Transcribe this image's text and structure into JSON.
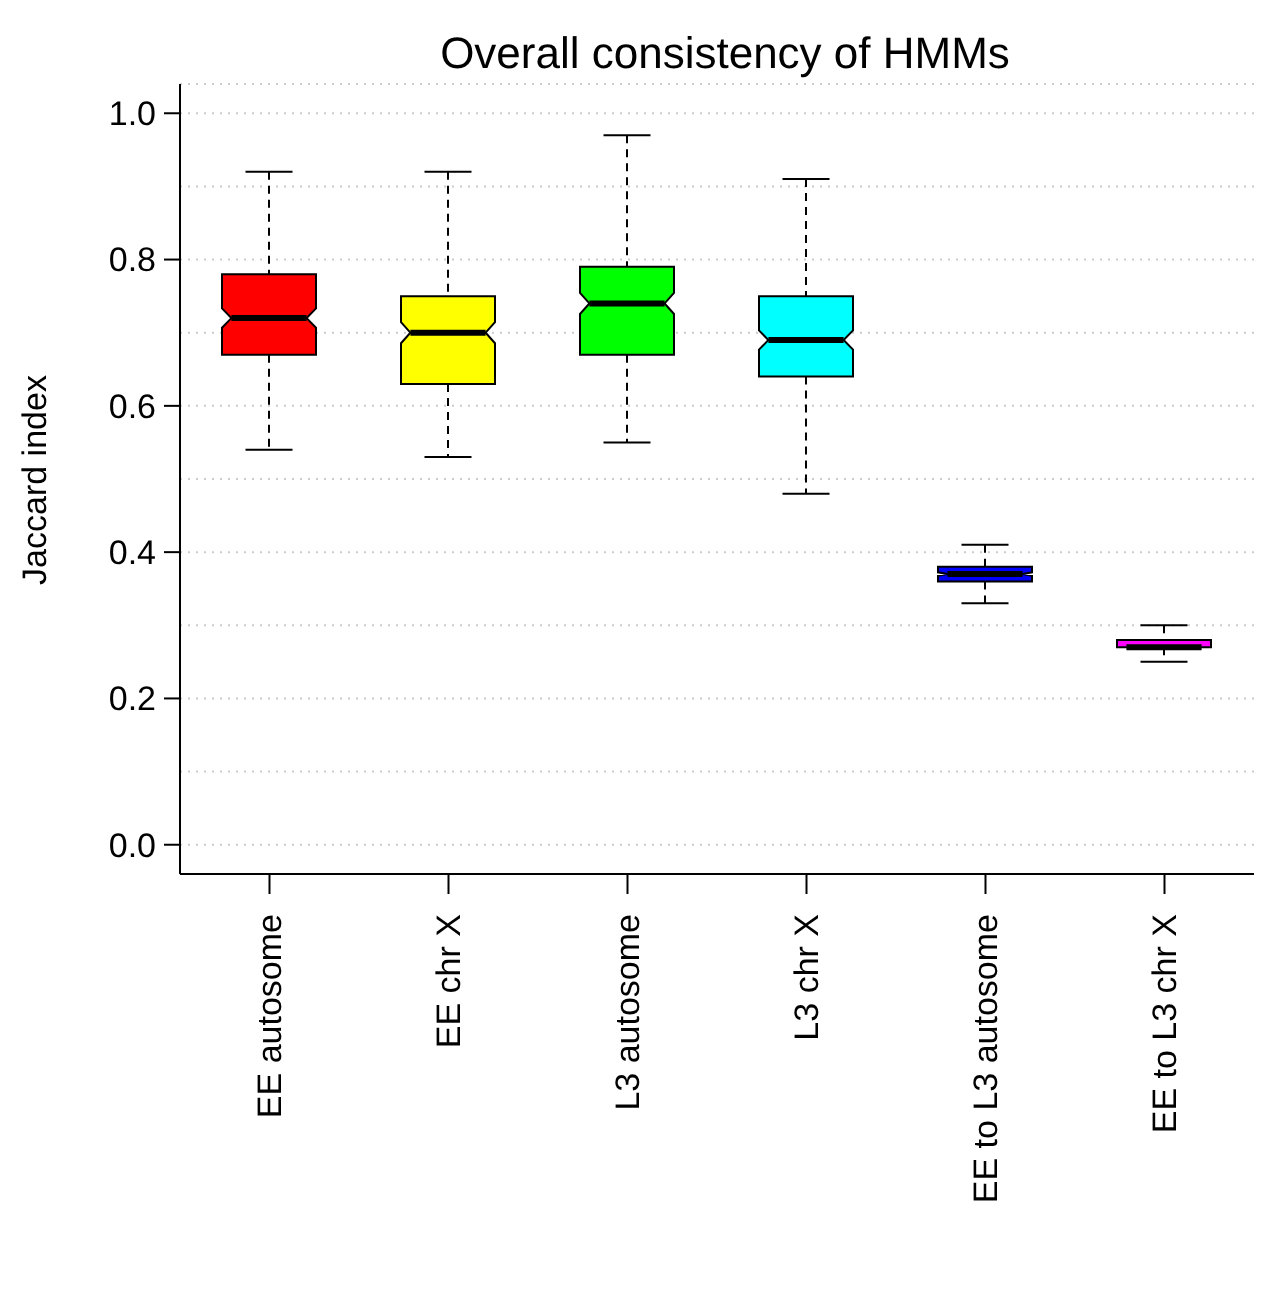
{
  "chart_data": {
    "type": "box",
    "title": "Overall consistency of HMMs",
    "ylabel": "Jaccard index",
    "categories": [
      "EE autosome",
      "EE chr X",
      "L3 autosome",
      "L3 chr X",
      "EE to L3 autosome",
      "EE to L3 chr X"
    ],
    "boxes": [
      {
        "low": 0.54,
        "q1": 0.67,
        "median": 0.72,
        "q3": 0.78,
        "high": 0.92
      },
      {
        "low": 0.53,
        "q1": 0.63,
        "median": 0.7,
        "q3": 0.75,
        "high": 0.92
      },
      {
        "low": 0.55,
        "q1": 0.67,
        "median": 0.74,
        "q3": 0.79,
        "high": 0.97
      },
      {
        "low": 0.48,
        "q1": 0.64,
        "median": 0.69,
        "q3": 0.75,
        "high": 0.91
      },
      {
        "low": 0.33,
        "q1": 0.36,
        "median": 0.37,
        "q3": 0.38,
        "high": 0.41
      },
      {
        "low": 0.25,
        "q1": 0.27,
        "median": 0.27,
        "q3": 0.28,
        "high": 0.3
      }
    ],
    "colors": [
      "#ff0000",
      "#ffff00",
      "#00ff00",
      "#00ffff",
      "#0000ff",
      "#ff00ff"
    ],
    "ylim": [
      -0.04,
      1.04
    ],
    "yticks": [
      {
        "value": 0,
        "label": "0.0"
      },
      {
        "value": 0.1,
        "label": null
      },
      {
        "value": 0.2,
        "label": "0.2"
      },
      {
        "value": 0.3,
        "label": null
      },
      {
        "value": 0.4,
        "label": "0.4"
      },
      {
        "value": 0.5,
        "label": null
      },
      {
        "value": 0.6,
        "label": "0.6"
      },
      {
        "value": 0.7,
        "label": null
      },
      {
        "value": 0.8,
        "label": "0.8"
      },
      {
        "value": 0.9,
        "label": null
      },
      {
        "value": 1,
        "label": "1.0"
      }
    ],
    "grid": "y"
  }
}
